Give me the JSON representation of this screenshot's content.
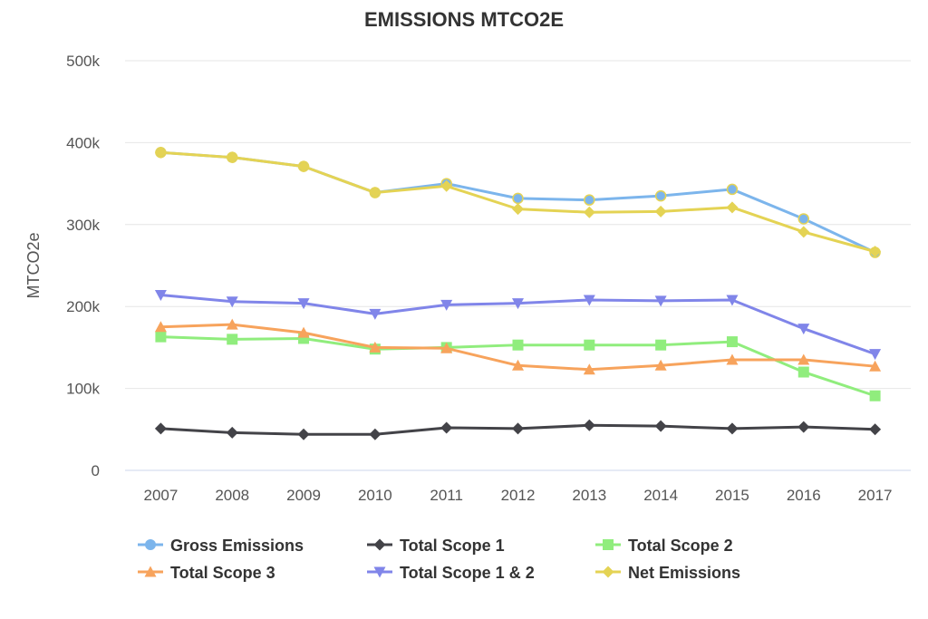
{
  "chart_data": {
    "type": "line",
    "title": "EMISSIONS MTCO2E",
    "xlabel": "",
    "ylabel": "MTCO2e",
    "x": [
      "2007",
      "2008",
      "2009",
      "2010",
      "2011",
      "2012",
      "2013",
      "2014",
      "2015",
      "2016",
      "2017"
    ],
    "ylim": [
      0,
      500000
    ],
    "yticks": [
      0,
      100000,
      200000,
      300000,
      400000,
      500000
    ],
    "ytick_labels": [
      "0",
      "100k",
      "200k",
      "300k",
      "400k",
      "500k"
    ],
    "grid": true,
    "legend": "bottom",
    "series": [
      {
        "name": "Gross Emissions",
        "color": "#7cb5ec",
        "marker": "circle",
        "values": [
          388000,
          382000,
          371000,
          339000,
          350000,
          332000,
          330000,
          335000,
          343000,
          307000,
          266000
        ]
      },
      {
        "name": "Total Scope 1",
        "color": "#434348",
        "marker": "diamond",
        "values": [
          51000,
          46000,
          44000,
          44000,
          52000,
          51000,
          55000,
          54000,
          51000,
          53000,
          50000
        ]
      },
      {
        "name": "Total Scope 2",
        "color": "#90ed7d",
        "marker": "square",
        "values": [
          163000,
          160000,
          161000,
          148000,
          150000,
          153000,
          153000,
          153000,
          157000,
          120000,
          91000
        ]
      },
      {
        "name": "Total Scope 3",
        "color": "#f7a35c",
        "marker": "triangle",
        "values": [
          175000,
          178000,
          168000,
          150000,
          149000,
          128000,
          123000,
          128000,
          135000,
          135000,
          127000
        ]
      },
      {
        "name": "Total Scope 1 & 2",
        "color": "#8085e9",
        "marker": "triangle-down",
        "values": [
          214000,
          206000,
          204000,
          191000,
          202000,
          204000,
          208000,
          207000,
          208000,
          173000,
          142000
        ]
      },
      {
        "name": "Net Emissions",
        "color": "#e4d354",
        "marker": "diamond",
        "values": [
          388000,
          382000,
          371000,
          339000,
          347000,
          319000,
          315000,
          316000,
          321000,
          291000,
          267000
        ]
      }
    ]
  }
}
